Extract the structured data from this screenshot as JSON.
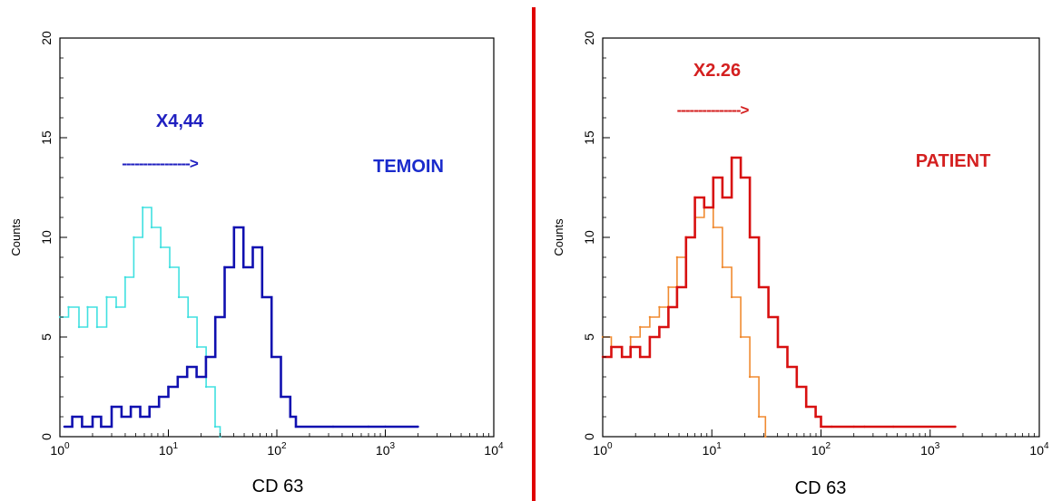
{
  "colors": {
    "separator": "#e00000",
    "left_annotation": "#2020c0",
    "right_annotation": "#d42020",
    "left_label": "#1a2bcc"
  },
  "chart_data": [
    {
      "type": "line",
      "xlabel": "CD 63",
      "ylabel": "Counts",
      "x_scale": "log",
      "xlim": [
        1,
        10000
      ],
      "ylim": [
        0,
        20
      ],
      "x_ticks": [
        "10^0",
        "10^1",
        "10^2",
        "10^3",
        "10^4"
      ],
      "y_ticks": [
        "0",
        "5",
        "10",
        "15",
        "20"
      ],
      "label": "TEMOIN",
      "annotation": {
        "text": "X4,44",
        "arrow": "---------------->"
      },
      "grid": false,
      "series": [
        {
          "color": "#40e0e0",
          "x": [
            1.0,
            1.2,
            1.5,
            1.8,
            2.2,
            2.7,
            3.3,
            4.0,
            4.8,
            5.8,
            7.0,
            8.5,
            10.3,
            12.5,
            15.2,
            18.4,
            22.3,
            27.0,
            30.0
          ],
          "y": [
            6.0,
            6.5,
            5.5,
            6.5,
            5.5,
            7.0,
            6.5,
            8.0,
            10.0,
            11.5,
            10.5,
            9.5,
            8.5,
            7.0,
            6.0,
            4.5,
            2.5,
            0.5,
            0.0
          ]
        },
        {
          "color": "#1010b0",
          "x": [
            1.1,
            1.3,
            1.6,
            2.0,
            2.4,
            3.0,
            3.7,
            4.5,
            5.5,
            6.7,
            8.2,
            10.0,
            12.2,
            14.9,
            18.2,
            22.2,
            27.1,
            33.0,
            40.3,
            49.2,
            60.0,
            73.2,
            89.4,
            109.0,
            133.0,
            150.0,
            330.0,
            700.0,
            1000.0,
            2000.0
          ],
          "y": [
            0.5,
            1.0,
            0.5,
            1.0,
            0.5,
            1.5,
            1.0,
            1.5,
            1.0,
            1.5,
            2.0,
            2.5,
            3.0,
            3.5,
            3.0,
            4.0,
            6.0,
            8.5,
            10.5,
            8.5,
            9.5,
            7.0,
            4.0,
            2.0,
            1.0,
            0.5,
            0.5,
            0.5,
            0.5,
            0.5
          ]
        }
      ]
    },
    {
      "type": "line",
      "xlabel": "CD 63",
      "ylabel": "Counts",
      "x_scale": "log",
      "xlim": [
        1,
        10000
      ],
      "ylim": [
        0,
        20
      ],
      "x_ticks": [
        "10^0",
        "10^1",
        "10^2",
        "10^3",
        "10^4"
      ],
      "y_ticks": [
        "0",
        "5",
        "10",
        "15",
        "20"
      ],
      "label": "PATIENT",
      "annotation": {
        "text": "X2.26",
        "arrow": "--------------->"
      },
      "grid": false,
      "series": [
        {
          "color": "#f08a30",
          "x": [
            1.0,
            1.2,
            1.5,
            1.8,
            2.2,
            2.7,
            3.3,
            4.0,
            4.8,
            5.8,
            7.0,
            8.5,
            10.3,
            12.5,
            15.2,
            18.4,
            22.3,
            27.0,
            31.0
          ],
          "y": [
            5.0,
            4.5,
            4.0,
            5.0,
            5.5,
            6.0,
            6.5,
            7.5,
            9.0,
            10.0,
            11.0,
            11.5,
            10.5,
            8.5,
            7.0,
            5.0,
            3.0,
            1.0,
            0.0
          ]
        },
        {
          "color": "#d81010",
          "x": [
            1.0,
            1.2,
            1.5,
            1.8,
            2.2,
            2.7,
            3.3,
            4.0,
            4.8,
            5.8,
            7.0,
            8.5,
            10.3,
            12.5,
            15.2,
            18.4,
            22.3,
            27.0,
            33.0,
            40.3,
            49.2,
            60.0,
            73.2,
            89.4,
            100.0,
            125.0,
            200.0,
            250.0,
            460.0,
            1700.0
          ],
          "y": [
            4.0,
            4.5,
            4.0,
            4.5,
            4.0,
            5.0,
            5.5,
            6.5,
            7.5,
            10.0,
            12.0,
            11.5,
            13.0,
            12.0,
            14.0,
            13.0,
            10.0,
            7.5,
            6.0,
            4.5,
            3.5,
            2.5,
            1.5,
            1.0,
            0.5,
            0.5,
            0.5,
            0.5,
            0.5,
            0.5
          ]
        }
      ]
    }
  ]
}
